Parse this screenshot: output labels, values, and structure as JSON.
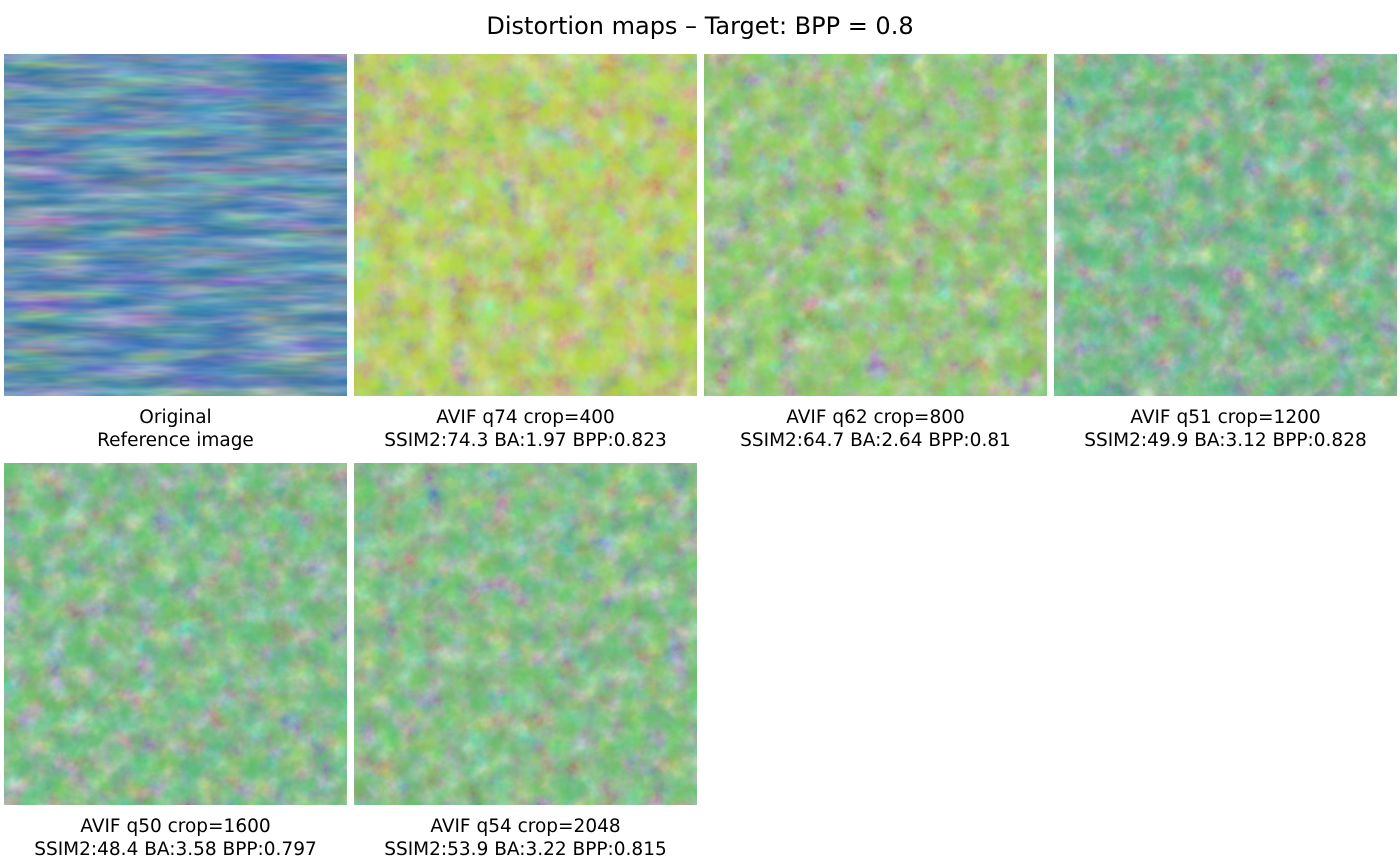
{
  "title": "Distortion maps – Target: BPP = 0.8",
  "panels": [
    {
      "line1": "Original",
      "line2": "Reference image"
    },
    {
      "line1": "AVIF q74 crop=400",
      "line2": "SSIM2:74.3 BA:1.97 BPP:0.823"
    },
    {
      "line1": "AVIF q62 crop=800",
      "line2": "SSIM2:64.7 BA:2.64 BPP:0.81"
    },
    {
      "line1": "AVIF q51 crop=1200",
      "line2": "SSIM2:49.9 BA:3.12 BPP:0.828"
    },
    {
      "line1": "AVIF q50 crop=1600",
      "line2": "SSIM2:48.4 BA:3.58 BPP:0.797"
    },
    {
      "line1": "AVIF q54 crop=2048",
      "line2": "SSIM2:53.9 BA:3.22 BPP:0.815"
    }
  ]
}
